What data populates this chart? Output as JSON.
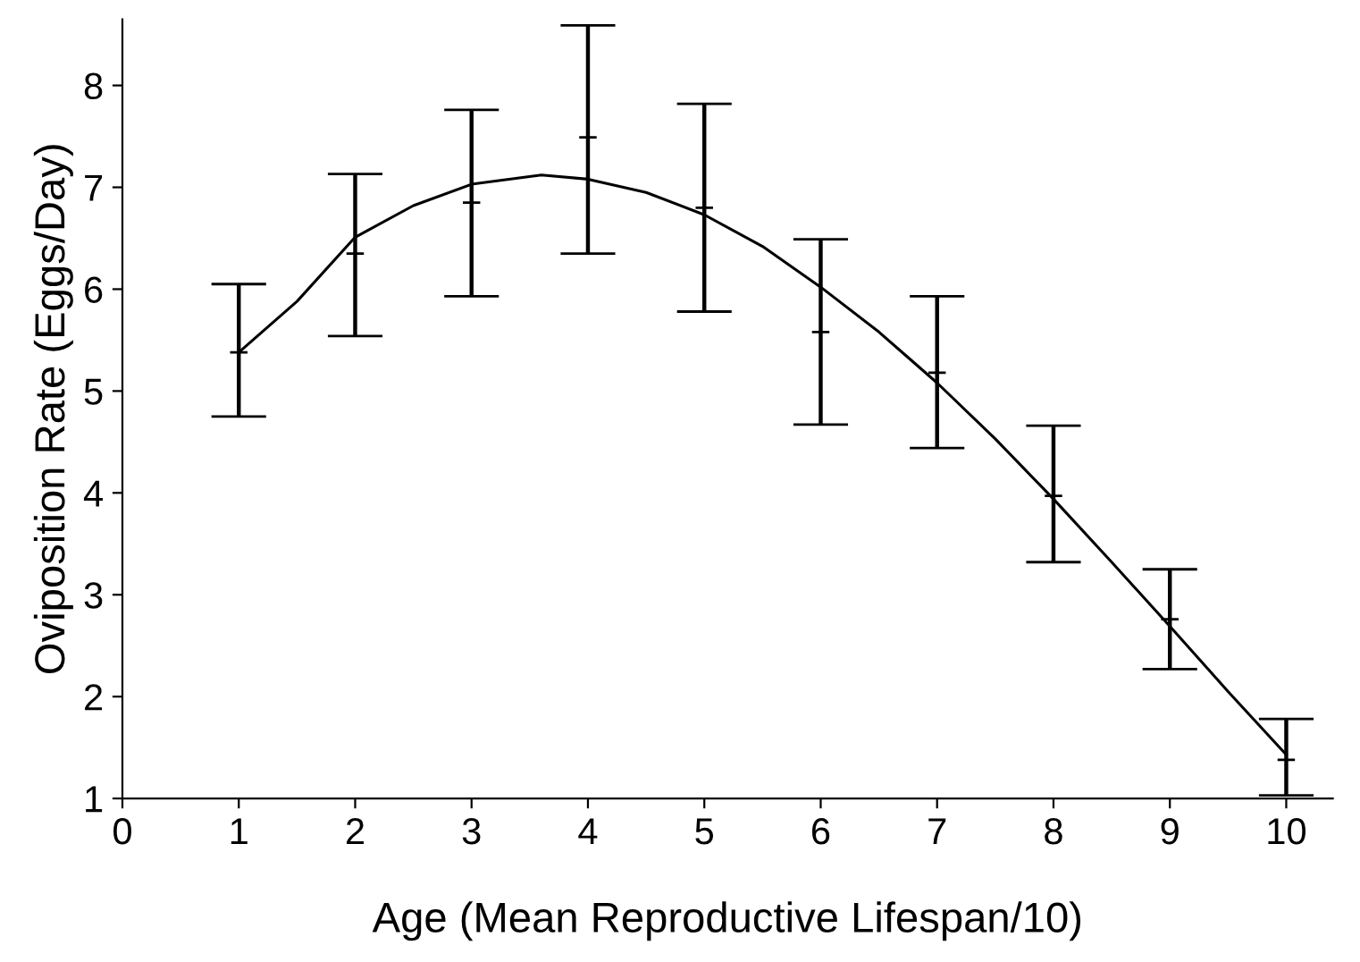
{
  "chart_data": {
    "type": "scatter",
    "xlabel": "Age (Mean Reproductive Lifespan/10)",
    "ylabel": "Oviposition Rate (Eggs/Day)",
    "xlim": [
      0,
      10.4
    ],
    "ylim": [
      1,
      8.65
    ],
    "xticks": [
      0,
      1,
      2,
      3,
      4,
      5,
      6,
      7,
      8,
      9,
      10
    ],
    "yticks": [
      1,
      2,
      3,
      4,
      5,
      6,
      7,
      8
    ],
    "grid": false,
    "legend": false,
    "series": [
      {
        "color": "#000000",
        "marker": "cross",
        "x": [
          1,
          2,
          3,
          4,
          5,
          6,
          7,
          8,
          9,
          10
        ],
        "values": [
          5.38,
          6.35,
          6.85,
          7.49,
          6.8,
          5.58,
          5.18,
          3.97,
          2.76,
          1.38
        ],
        "errors": [
          [
            4.75,
            6.05
          ],
          [
            5.54,
            7.13
          ],
          [
            5.93,
            7.76
          ],
          [
            6.35,
            8.59
          ],
          [
            5.78,
            7.82
          ],
          [
            4.67,
            6.49
          ],
          [
            4.44,
            5.93
          ],
          [
            3.32,
            4.66
          ],
          [
            2.27,
            3.25
          ],
          [
            1.03,
            1.78
          ]
        ]
      },
      {
        "type": "line",
        "color": "#000000",
        "marker": "none",
        "line_style": "solid",
        "x": [
          1,
          1.5,
          2,
          2.5,
          3,
          3.6,
          4,
          4.5,
          5,
          5.5,
          6,
          6.5,
          7,
          7.5,
          8,
          8.5,
          9,
          9.5,
          10
        ],
        "values": [
          5.38,
          5.88,
          6.51,
          6.82,
          7.03,
          7.12,
          7.08,
          6.95,
          6.73,
          6.42,
          6.02,
          5.58,
          5.08,
          4.53,
          3.94,
          3.32,
          2.69,
          2.05,
          1.43
        ]
      }
    ]
  }
}
